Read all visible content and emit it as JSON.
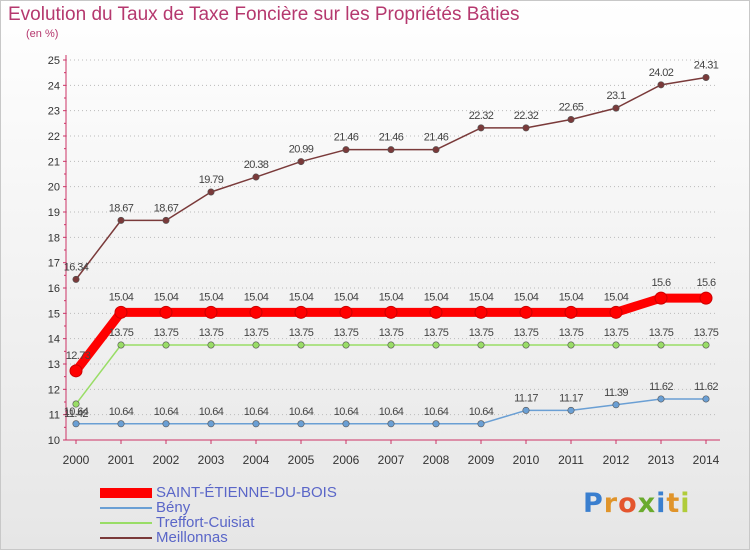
{
  "chart_data": {
    "type": "line",
    "title": "Evolution du Taux de Taxe Foncière sur les Propriétés Bâties",
    "subtitle": "(en %)",
    "categories": [
      "2000",
      "2001",
      "2002",
      "2003",
      "2004",
      "2005",
      "2006",
      "2007",
      "2008",
      "2009",
      "2010",
      "2011",
      "2012",
      "2013",
      "2014"
    ],
    "ylim": [
      10,
      25
    ],
    "yticks": [
      "10",
      "11",
      "12",
      "13",
      "14",
      "15",
      "16",
      "17",
      "18",
      "19",
      "20",
      "21",
      "22",
      "23",
      "24",
      "25"
    ],
    "grid": "horizontal-dotted",
    "legend_position": "bottom-left",
    "series": [
      {
        "name": "SAINT-ÉTIENNE-DU-BOIS",
        "color": "#ff0000",
        "values": [
          12.73,
          15.04,
          15.04,
          15.04,
          15.04,
          15.04,
          15.04,
          15.04,
          15.04,
          15.04,
          15.04,
          15.04,
          15.04,
          15.6,
          15.6
        ],
        "labels": [
          "12.73",
          "15.04",
          "15.04",
          "15.04",
          "15.04",
          "15.04",
          "15.04",
          "15.04",
          "15.04",
          "15.04",
          "15.04",
          "15.04",
          "15.04",
          "15.6",
          "15.6"
        ]
      },
      {
        "name": "Bény",
        "color": "#6a9fd4",
        "values": [
          10.64,
          10.64,
          10.64,
          10.64,
          10.64,
          10.64,
          10.64,
          10.64,
          10.64,
          10.64,
          11.17,
          11.17,
          11.39,
          11.62,
          11.62
        ],
        "labels": [
          "10.64",
          "10.64",
          "10.64",
          "10.64",
          "10.64",
          "10.64",
          "10.64",
          "10.64",
          "10.64",
          "10.64",
          "11.17",
          "11.17",
          "11.39",
          "11.62",
          "11.62"
        ]
      },
      {
        "name": "Treffort-Cuisiat",
        "color": "#99dd66",
        "values": [
          11.42,
          13.75,
          13.75,
          13.75,
          13.75,
          13.75,
          13.75,
          13.75,
          13.75,
          13.75,
          13.75,
          13.75,
          13.75,
          13.75,
          13.75
        ],
        "labels": [
          "11.42",
          "13.75",
          "13.75",
          "13.75",
          "13.75",
          "13.75",
          "13.75",
          "13.75",
          "13.75",
          "13.75",
          "13.75",
          "13.75",
          "13.75",
          "13.75",
          "13.75"
        ]
      },
      {
        "name": "Meillonnas",
        "color": "#7a3a3a",
        "values": [
          16.34,
          18.67,
          18.67,
          19.79,
          20.38,
          20.99,
          21.46,
          21.46,
          21.46,
          22.32,
          22.32,
          22.65,
          23.1,
          24.02,
          24.31
        ],
        "labels": [
          "16.34",
          "18.67",
          "18.67",
          "19.79",
          "20.38",
          "20.99",
          "21.46",
          "21.46",
          "21.46",
          "22.32",
          "22.32",
          "22.65",
          "23.1",
          "24.02",
          "24.31"
        ]
      }
    ]
  },
  "logo": {
    "letters": [
      "P",
      "r",
      "o",
      "x",
      "i",
      "t",
      "i"
    ],
    "colors": [
      "#3a7fcf",
      "#e0942a",
      "#e4552e",
      "#6aab2e",
      "#3a7fcf",
      "#e0942a",
      "#b0cc3a"
    ]
  }
}
